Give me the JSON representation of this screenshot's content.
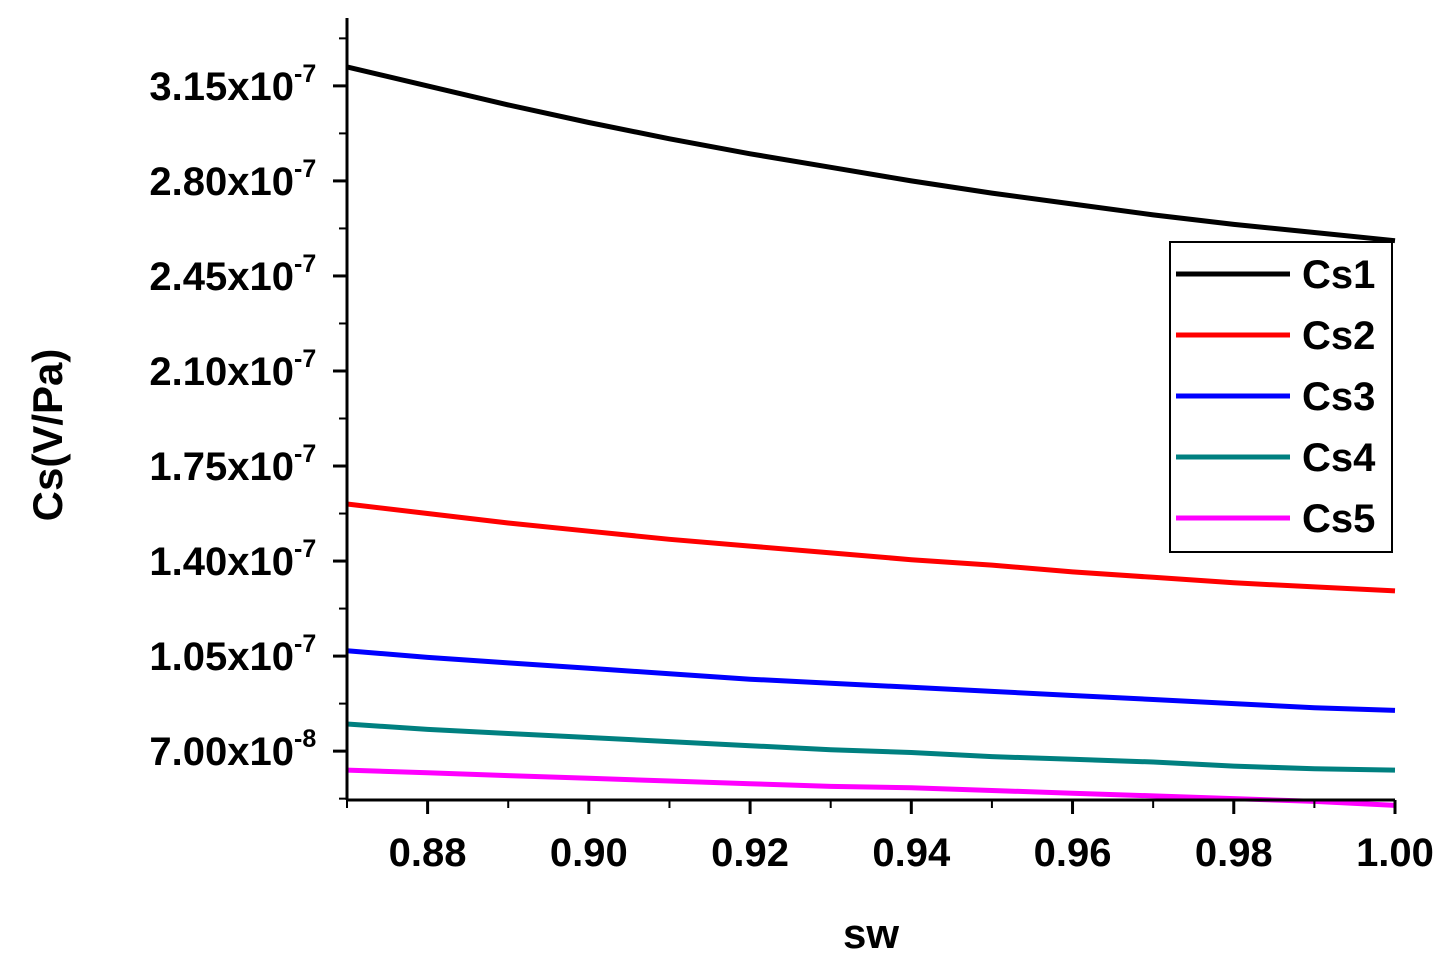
{
  "chart_data": {
    "type": "line",
    "xlabel": "sw",
    "ylabel": "Cs(V/Pa)",
    "xlim": [
      0.87,
      1.0
    ],
    "ylim": [
      5.2e-08,
      3.4e-07
    ],
    "x_ticks": [
      {
        "value": 0.88,
        "label": "0.88"
      },
      {
        "value": 0.9,
        "label": "0.90"
      },
      {
        "value": 0.92,
        "label": "0.92"
      },
      {
        "value": 0.94,
        "label": "0.94"
      },
      {
        "value": 0.96,
        "label": "0.96"
      },
      {
        "value": 0.98,
        "label": "0.98"
      },
      {
        "value": 1.0,
        "label": "1.00"
      }
    ],
    "y_ticks": [
      {
        "value": 7e-08,
        "mantissa": "7.00x10",
        "exponent": "-8"
      },
      {
        "value": 1.05e-07,
        "mantissa": "1.05x10",
        "exponent": "-7"
      },
      {
        "value": 1.4e-07,
        "mantissa": "1.40x10",
        "exponent": "-7"
      },
      {
        "value": 1.75e-07,
        "mantissa": "1.75x10",
        "exponent": "-7"
      },
      {
        "value": 2.1e-07,
        "mantissa": "2.10x10",
        "exponent": "-7"
      },
      {
        "value": 2.45e-07,
        "mantissa": "2.45x10",
        "exponent": "-7"
      },
      {
        "value": 2.8e-07,
        "mantissa": "2.80x10",
        "exponent": "-7"
      },
      {
        "value": 3.15e-07,
        "mantissa": "3.15x10",
        "exponent": "-7"
      }
    ],
    "x": [
      0.87,
      0.88,
      0.89,
      0.9,
      0.91,
      0.92,
      0.93,
      0.94,
      0.95,
      0.96,
      0.97,
      0.98,
      0.99,
      1.0
    ],
    "series": [
      {
        "name": "Cs1",
        "color": "#000000",
        "values": [
          3.22e-07,
          3.15e-07,
          3.08e-07,
          3.015e-07,
          2.955e-07,
          2.9e-07,
          2.85e-07,
          2.8e-07,
          2.755e-07,
          2.715e-07,
          2.675e-07,
          2.64e-07,
          2.61e-07,
          2.58e-07
        ]
      },
      {
        "name": "Cs2",
        "color": "#ff0000",
        "values": [
          1.61e-07,
          1.575e-07,
          1.54e-07,
          1.51e-07,
          1.48e-07,
          1.455e-07,
          1.43e-07,
          1.405e-07,
          1.385e-07,
          1.36e-07,
          1.34e-07,
          1.32e-07,
          1.305e-07,
          1.29e-07
        ]
      },
      {
        "name": "Cs3",
        "color": "#0000ff",
        "values": [
          1.07e-07,
          1.045e-07,
          1.025e-07,
          1.005e-07,
          9.85e-08,
          9.65e-08,
          9.5e-08,
          9.35e-08,
          9.2e-08,
          9.05e-08,
          8.9e-08,
          8.75e-08,
          8.6e-08,
          8.5e-08
        ]
      },
      {
        "name": "Cs4",
        "color": "#008080",
        "values": [
          8e-08,
          7.8e-08,
          7.65e-08,
          7.5e-08,
          7.35e-08,
          7.2e-08,
          7.05e-08,
          6.95e-08,
          6.8e-08,
          6.7e-08,
          6.6e-08,
          6.45e-08,
          6.35e-08,
          6.3e-08
        ]
      },
      {
        "name": "Cs5",
        "color": "#ff00ff",
        "values": [
          6.3e-08,
          6.2e-08,
          6.1e-08,
          6e-08,
          5.9e-08,
          5.8e-08,
          5.7e-08,
          5.65e-08,
          5.55e-08,
          5.45e-08,
          5.35e-08,
          5.25e-08,
          5.15e-08,
          5e-08
        ]
      }
    ],
    "legend": "right",
    "grid": false
  }
}
